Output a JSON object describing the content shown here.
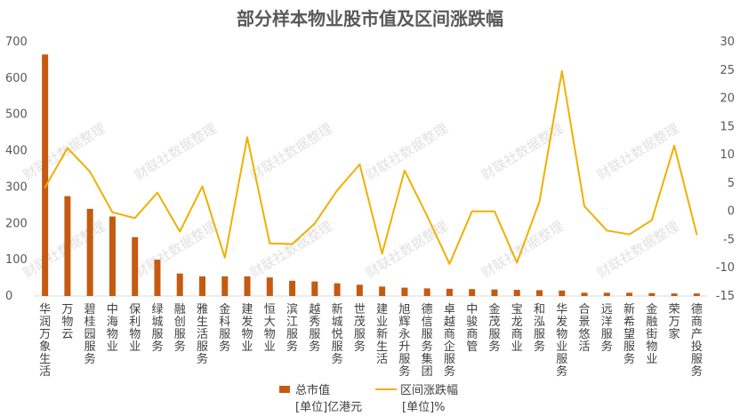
{
  "chart_data": {
    "type": "bar",
    "title": "部分样本物业股市值及区间涨跌幅",
    "categories": [
      "华润万象生活",
      "万物云",
      "碧桂园服务",
      "中海物业",
      "保利物业",
      "绿城服务",
      "融创服务",
      "雅生活服务",
      "金科服务",
      "建发物业",
      "恒大物业",
      "滨江服务",
      "越秀服务",
      "新城悦服务",
      "世茂服务",
      "建业新生活",
      "旭辉永升服务",
      "德信服务集团",
      "卓越商企服务",
      "中骏商管",
      "金茂服务",
      "宝龙商业",
      "和泓服务",
      "华发物业服务",
      "合景悠活",
      "远洋服务",
      "新希望服务",
      "金融街物业",
      "荣万家",
      "德商产投服务"
    ],
    "series": [
      {
        "name": "总市值",
        "unit": "[单位]亿港元",
        "type": "bar",
        "axis": "left",
        "color": "#c55a11",
        "values": [
          665,
          275,
          240,
          219,
          162,
          100,
          62,
          54,
          54,
          54,
          51,
          42,
          40,
          35,
          31,
          26,
          23,
          21,
          20,
          19,
          18,
          17,
          16,
          15,
          9,
          9,
          9,
          8,
          7,
          7
        ]
      },
      {
        "name": "区间涨跌幅",
        "unit": "[单位]%",
        "type": "line",
        "axis": "right",
        "color": "#f0b000",
        "values": [
          4.2,
          11.2,
          7.0,
          -0.2,
          -1.2,
          3.3,
          -3.6,
          4.4,
          -8.2,
          13.1,
          -5.7,
          -5.8,
          -2.2,
          3.7,
          8.3,
          -7.5,
          7.2,
          -0.8,
          -9.3,
          0,
          0,
          -9.1,
          1.7,
          24.8,
          0.9,
          -3.4,
          -4.1,
          -1.6,
          11.6,
          -4.1
        ]
      }
    ],
    "y_left": {
      "lim": [
        0,
        700
      ],
      "ticks": [
        0,
        100,
        200,
        300,
        400,
        500,
        600,
        700
      ]
    },
    "y_right": {
      "lim": [
        -15,
        30
      ],
      "ticks": [
        -15,
        -10,
        -5,
        0,
        5,
        10,
        15,
        20,
        25,
        30
      ]
    },
    "legend_position": "bottom-center",
    "grid": false
  },
  "watermark_text": "财联社数据整理"
}
